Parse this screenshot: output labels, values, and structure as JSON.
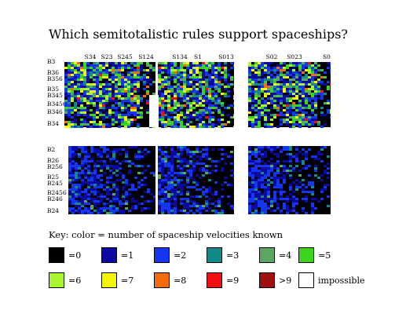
{
  "title": "Which semitotalistic rules support spaceships?",
  "key_label": "Key: color = number of spaceship velocities known",
  "chart_data": {
    "type": "heatmap",
    "title": "Which semitotalistic rules support spaceships?",
    "column_groups": [
      "S34",
      "S23",
      "S245",
      "S124",
      "S134",
      "S1",
      "S013",
      "S02",
      "S023",
      "S0"
    ],
    "panels": [
      {
        "name": "top",
        "row_labels": [
          "B3",
          "B36",
          "B356",
          "B35",
          "B345",
          "B3456",
          "B346",
          "B34"
        ]
      },
      {
        "name": "bottom",
        "row_labels": [
          "B2",
          "B26",
          "B256",
          "B25",
          "B245",
          "B2456",
          "B246",
          "B24"
        ]
      }
    ],
    "legend": [
      {
        "label": "=0",
        "color": "#000000"
      },
      {
        "label": "=1",
        "color": "#0a0aa0"
      },
      {
        "label": "=2",
        "color": "#1436f0"
      },
      {
        "label": "=3",
        "color": "#138a8a"
      },
      {
        "label": "=4",
        "color": "#5aa860"
      },
      {
        "label": "=5",
        "color": "#3cd41c"
      },
      {
        "label": "=6",
        "color": "#a8f530"
      },
      {
        "label": "=7",
        "color": "#f5f50a"
      },
      {
        "label": "=8",
        "color": "#f56a0a"
      },
      {
        "label": "=9",
        "color": "#f21010"
      },
      {
        "label": ">9",
        "color": "#a01010"
      },
      {
        "label": "impossible",
        "color": "#ffffff"
      }
    ]
  }
}
